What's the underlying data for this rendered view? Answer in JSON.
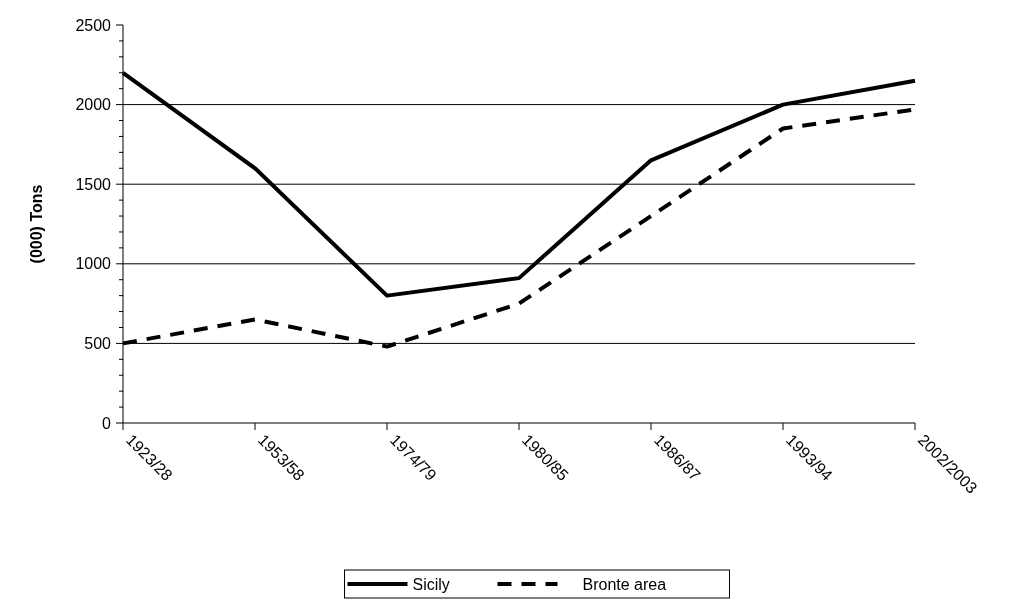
{
  "chart_data": {
    "type": "line",
    "ylabel": "(000) Tons",
    "categories": [
      "1923/28",
      "1953/58",
      "1974/79",
      "1980/85",
      "1986/87",
      "1993/94",
      "2002/2003"
    ],
    "series": [
      {
        "name": "Sicily",
        "color": "#000000",
        "line_style": "solid",
        "values": [
          2200,
          1600,
          800,
          910,
          1650,
          2000,
          2150
        ]
      },
      {
        "name": "Bronte area",
        "color": "#000000",
        "line_style": "dashed",
        "values": [
          500,
          650,
          480,
          750,
          1300,
          1850,
          1970
        ]
      }
    ],
    "ylim": [
      0,
      2500
    ],
    "yticks": [
      0,
      {
        "value": 100,
        "label": null
      },
      {
        "value": 200,
        "label": null
      },
      {
        "value": 300,
        "label": null
      },
      {
        "value": 400,
        "label": null
      },
      500,
      {
        "value": 600,
        "label": null
      },
      {
        "value": 700,
        "label": null
      },
      {
        "value": 800,
        "label": null
      },
      {
        "value": 900,
        "label": null
      },
      1000,
      {
        "value": 1100,
        "label": null
      },
      {
        "value": 1200,
        "label": null
      },
      {
        "value": 1300,
        "label": null
      },
      {
        "value": 1400,
        "label": null
      },
      1500,
      {
        "value": 1600,
        "label": null
      },
      {
        "value": 1700,
        "label": null
      },
      {
        "value": 1800,
        "label": null
      },
      {
        "value": 1900,
        "label": null
      },
      2000,
      {
        "value": 2100,
        "label": null
      },
      {
        "value": 2200,
        "label": null
      },
      {
        "value": 2300,
        "label": null
      },
      {
        "value": 2400,
        "label": null
      },
      2500
    ],
    "grid": "y",
    "legend": "bottom",
    "marker": "none"
  }
}
